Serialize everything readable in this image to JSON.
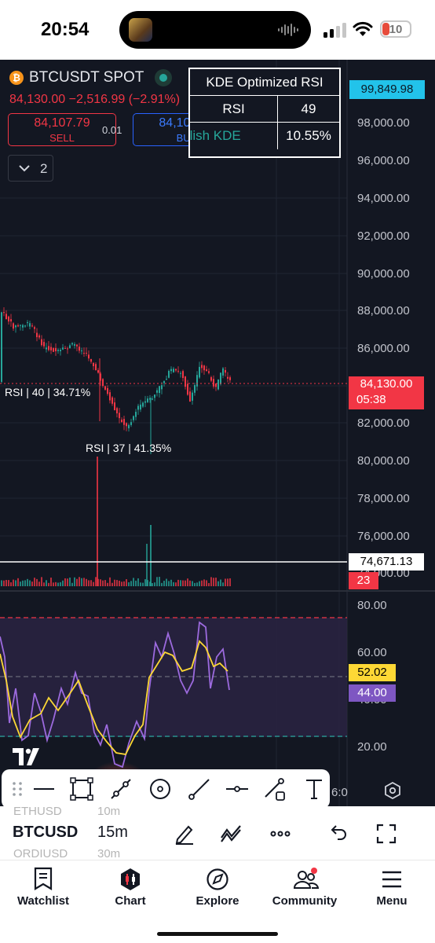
{
  "status_bar": {
    "time": "20:54",
    "battery": "10",
    "battery_color": "#e74c3c"
  },
  "chart": {
    "symbol": "BTCUSDT SPOT",
    "price_change": "84,130.00 −2,516.99 (−2.91%)",
    "sell": {
      "price": "84,107.79",
      "label": "SELL",
      "color": "#f23645"
    },
    "buy": {
      "price": "84,107.80",
      "label": "BUY",
      "color": "#2962ff"
    },
    "spread": "0.01",
    "collapse": {
      "count": "2"
    },
    "kde_table": {
      "title": "KDE Optimized RSI",
      "row1": {
        "key": "RSI",
        "value": "49"
      },
      "row2": {
        "key": "Bullish KDE",
        "value": "10.55%"
      }
    },
    "price_axis": [
      "98,000.00",
      "96,000.00",
      "94,000.00",
      "92,000.00",
      "90,000.00",
      "88,000.00",
      "86,000.00",
      "82,000.00",
      "80,000.00",
      "78,000.00",
      "76,000.00",
      "74,000.00"
    ],
    "tags": {
      "top": "99,849.98",
      "last_price": "84,130.00",
      "countdown": "05:38",
      "level": "74,671.13",
      "volume": "23",
      "rsi": "52.02",
      "kde": "44.00"
    },
    "rsi_axis": [
      "80.00",
      "60.00",
      "40.00",
      "20.00"
    ],
    "notes": [
      "RSI | 40 | 34.71%",
      "RSI | 37 | 41.35%"
    ],
    "time_axis_partial": "6:0",
    "colors": {
      "up": "#26a69a",
      "down": "#f23645",
      "rsi_line": "#fdd835",
      "kde_line": "#9c6ade",
      "accent": "#22c3ea"
    }
  },
  "drawing_tools": [
    "trend-line-tool",
    "rectangle-tool",
    "path-tool",
    "circle-tool",
    "ray-tool",
    "horizontal-ray-tool",
    "measure-tool",
    "text-tool"
  ],
  "bottom_toolbar": {
    "symbol": "BTCUSD",
    "symbol_prev": "ETHUSD",
    "symbol_next": "ORDIUSD",
    "interval": "15m",
    "interval_prev": "10m",
    "interval_next": "30m"
  },
  "nav": [
    {
      "label": "Watchlist",
      "icon": "watchlist-icon"
    },
    {
      "label": "Chart",
      "icon": "chart-icon"
    },
    {
      "label": "Explore",
      "icon": "compass-icon"
    },
    {
      "label": "Community",
      "icon": "community-icon"
    },
    {
      "label": "Menu",
      "icon": "hamburger-icon"
    }
  ]
}
